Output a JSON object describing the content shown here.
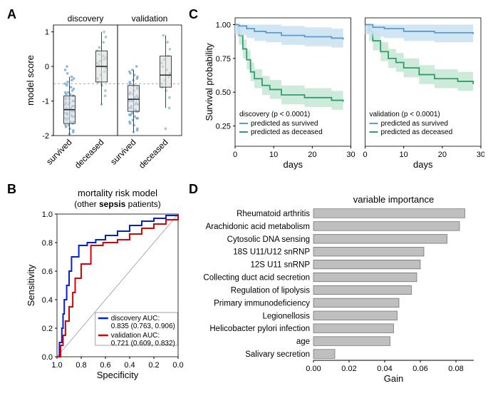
{
  "panelA": {
    "letter": "A",
    "ylabel": "model score",
    "facets": [
      "discovery",
      "validation"
    ],
    "categories": [
      "survived",
      "deceased"
    ],
    "ylim": [
      -2,
      1.2
    ],
    "yticks": [
      -2,
      -1,
      0,
      1
    ],
    "colors": {
      "survived": "#5a9bd4",
      "deceased": "#6fbf95"
    },
    "boxes": {
      "discovery": {
        "survived": {
          "q1": -1.65,
          "med": -1.25,
          "q3": -0.85,
          "wlo": -2.0,
          "whi": -0.3
        },
        "deceased": {
          "q1": -0.45,
          "med": 0.0,
          "q3": 0.45,
          "wlo": -1.1,
          "whi": 1.0
        }
      },
      "validation": {
        "survived": {
          "q1": -1.3,
          "med": -0.95,
          "q3": -0.55,
          "wlo": -1.9,
          "whi": -0.1
        },
        "deceased": {
          "q1": -0.6,
          "med": -0.25,
          "q3": 0.3,
          "wlo": -1.2,
          "whi": 0.9
        }
      }
    },
    "jitter": {
      "discovery": {
        "survived": [
          -1.95,
          -1.9,
          -1.85,
          -1.8,
          -1.75,
          -1.7,
          -1.7,
          -1.65,
          -1.6,
          -1.6,
          -1.55,
          -1.5,
          -1.5,
          -1.45,
          -1.45,
          -1.4,
          -1.4,
          -1.35,
          -1.35,
          -1.3,
          -1.3,
          -1.25,
          -1.25,
          -1.25,
          -1.2,
          -1.2,
          -1.15,
          -1.15,
          -1.1,
          -1.1,
          -1.05,
          -1.05,
          -1.0,
          -1.0,
          -0.95,
          -0.95,
          -0.9,
          -0.9,
          -0.85,
          -0.85,
          -0.8,
          -0.8,
          -0.75,
          -0.75,
          -0.7,
          -0.65,
          -0.6,
          -0.55,
          -0.5,
          -0.45,
          -0.4,
          -0.35,
          -0.3,
          -0.2,
          -0.1,
          -0.0
        ],
        "deceased": [
          -1.1,
          -0.85,
          -0.7,
          -0.55,
          -0.45,
          -0.35,
          -0.25,
          -0.15,
          -0.05,
          0.0,
          0.05,
          0.1,
          0.15,
          0.2,
          0.25,
          0.3,
          0.35,
          0.45,
          0.55,
          0.7,
          0.85,
          1.0
        ]
      },
      "validation": {
        "survived": [
          -1.9,
          -1.85,
          -1.8,
          -1.7,
          -1.65,
          -1.6,
          -1.55,
          -1.5,
          -1.5,
          -1.45,
          -1.4,
          -1.4,
          -1.35,
          -1.3,
          -1.3,
          -1.25,
          -1.2,
          -1.2,
          -1.15,
          -1.1,
          -1.1,
          -1.05,
          -1.0,
          -1.0,
          -0.95,
          -0.9,
          -0.9,
          -0.85,
          -0.8,
          -0.8,
          -0.75,
          -0.7,
          -0.65,
          -0.6,
          -0.55,
          -0.5,
          -0.45,
          -0.4,
          -0.35,
          -0.3,
          -0.25,
          -0.2,
          -0.15,
          -0.1,
          0.0
        ],
        "deceased": [
          -1.8,
          -1.2,
          -0.9,
          -0.7,
          -0.6,
          -0.5,
          -0.4,
          -0.3,
          -0.2,
          -0.1,
          0.0,
          0.1,
          0.2,
          0.3,
          0.5,
          0.7,
          0.9
        ]
      }
    }
  },
  "panelB": {
    "letter": "B",
    "title": "mortality risk model",
    "subtitle": "(other sepsis patients)",
    "xlabel": "Specificity",
    "ylabel": "Sensitivity",
    "xticks": [
      1.0,
      0.8,
      0.6,
      0.4,
      0.2,
      0.0
    ],
    "yticks": [
      0.0,
      0.2,
      0.4,
      0.6,
      0.8,
      1.0
    ],
    "curves": {
      "discovery": {
        "color": "#0020e0",
        "label": "discovery AUC:",
        "auc_text": "0.835 (0.763, 0.906)",
        "points": [
          [
            1.0,
            0.0
          ],
          [
            0.98,
            0.1
          ],
          [
            0.96,
            0.2
          ],
          [
            0.95,
            0.3
          ],
          [
            0.94,
            0.4
          ],
          [
            0.92,
            0.5
          ],
          [
            0.9,
            0.6
          ],
          [
            0.88,
            0.7
          ],
          [
            0.82,
            0.78
          ],
          [
            0.75,
            0.8
          ],
          [
            0.68,
            0.82
          ],
          [
            0.6,
            0.85
          ],
          [
            0.5,
            0.88
          ],
          [
            0.4,
            0.92
          ],
          [
            0.3,
            0.95
          ],
          [
            0.2,
            0.97
          ],
          [
            0.1,
            0.99
          ],
          [
            0.0,
            1.0
          ]
        ]
      },
      "validation": {
        "color": "#e00000",
        "label": "validation AUC:",
        "auc_text": "0.721 (0.609, 0.832)",
        "points": [
          [
            1.0,
            0.0
          ],
          [
            0.97,
            0.08
          ],
          [
            0.95,
            0.15
          ],
          [
            0.93,
            0.25
          ],
          [
            0.9,
            0.35
          ],
          [
            0.87,
            0.45
          ],
          [
            0.85,
            0.55
          ],
          [
            0.8,
            0.65
          ],
          [
            0.72,
            0.78
          ],
          [
            0.62,
            0.8
          ],
          [
            0.5,
            0.82
          ],
          [
            0.4,
            0.86
          ],
          [
            0.3,
            0.9
          ],
          [
            0.2,
            0.93
          ],
          [
            0.1,
            0.96
          ],
          [
            0.0,
            1.0
          ]
        ]
      }
    },
    "diag_color": "#999999"
  },
  "panelC": {
    "letter": "C",
    "ylabel": "Survival probability",
    "xlabel": "days",
    "xlim": [
      0,
      30
    ],
    "xticks": [
      0,
      10,
      20,
      30
    ],
    "yticks": [
      0.25,
      0.5,
      0.75,
      1.0
    ],
    "facets": [
      {
        "title": "discovery (p < 0.0001)",
        "survived": {
          "color": "#5a9bd4",
          "band": "#cde2f2",
          "label": "predicted as survived",
          "steps": [
            [
              0,
              1.0
            ],
            [
              1,
              0.99
            ],
            [
              3,
              0.97
            ],
            [
              5,
              0.95
            ],
            [
              8,
              0.94
            ],
            [
              12,
              0.92
            ],
            [
              18,
              0.91
            ],
            [
              25,
              0.9
            ],
            [
              28,
              0.89
            ]
          ]
        },
        "deceased": {
          "color": "#2e9e6b",
          "band": "#c8e8d7",
          "label": "predicted as deceased",
          "steps": [
            [
              0,
              1.0
            ],
            [
              1,
              0.92
            ],
            [
              2,
              0.82
            ],
            [
              3,
              0.74
            ],
            [
              4,
              0.65
            ],
            [
              5,
              0.6
            ],
            [
              7,
              0.55
            ],
            [
              9,
              0.52
            ],
            [
              12,
              0.48
            ],
            [
              18,
              0.46
            ],
            [
              25,
              0.44
            ],
            [
              28,
              0.43
            ]
          ]
        }
      },
      {
        "title": "validation (p < 0.0001)",
        "survived": {
          "color": "#5a9bd4",
          "band": "#cde2f2",
          "label": "predicted as survived",
          "steps": [
            [
              0,
              1.0
            ],
            [
              2,
              0.98
            ],
            [
              5,
              0.97
            ],
            [
              10,
              0.95
            ],
            [
              18,
              0.94
            ],
            [
              28,
              0.93
            ]
          ]
        },
        "deceased": {
          "color": "#2e9e6b",
          "band": "#c8e8d7",
          "label": "predicted as deceased",
          "steps": [
            [
              0,
              1.0
            ],
            [
              1,
              0.95
            ],
            [
              2,
              0.88
            ],
            [
              4,
              0.8
            ],
            [
              6,
              0.75
            ],
            [
              8,
              0.72
            ],
            [
              10,
              0.68
            ],
            [
              14,
              0.63
            ],
            [
              18,
              0.6
            ],
            [
              24,
              0.58
            ],
            [
              28,
              0.56
            ]
          ]
        }
      }
    ]
  },
  "panelD": {
    "letter": "D",
    "title": "variable importance",
    "xlabel": "Gain",
    "xlim": [
      0,
      0.09
    ],
    "xticks": [
      0.0,
      0.02,
      0.04,
      0.06,
      0.08
    ],
    "bar_color": "#bfbfbf",
    "bar_border": "#555555",
    "bars": [
      {
        "label": "Rheumatoid arthritis",
        "value": 0.085
      },
      {
        "label": "Arachidonic acid metabolism",
        "value": 0.082
      },
      {
        "label": "Cytosolic DNA sensing",
        "value": 0.075
      },
      {
        "label": "18S U11/U12 snRNP",
        "value": 0.062
      },
      {
        "label": "12S U11 snRNP",
        "value": 0.06
      },
      {
        "label": "Collecting duct acid secretion",
        "value": 0.058
      },
      {
        "label": "Regulation of lipolysis",
        "value": 0.055
      },
      {
        "label": "Primary immunodeficiency",
        "value": 0.048
      },
      {
        "label": "Legionellosis",
        "value": 0.047
      },
      {
        "label": "Helicobacter pylori infection",
        "value": 0.045
      },
      {
        "label": "age",
        "value": 0.043
      },
      {
        "label": "Salivary secretion",
        "value": 0.012
      }
    ]
  }
}
